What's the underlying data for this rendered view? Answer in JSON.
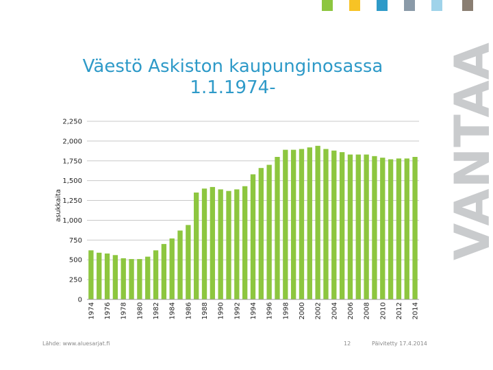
{
  "title": {
    "line1": "Väestö Askiston kaupunginosassa",
    "line2": "1.1.1974-"
  },
  "logo_text": "VANTAA",
  "swatches": [
    "#8dc63f",
    "#f7c325",
    "#2E9AC8",
    "#8a9aa8",
    "#9fd3ea",
    "#8a7e72"
  ],
  "footer": {
    "source": "Lähde: www.aluesarjat.fi",
    "page": "12",
    "updated": "Päivitetty 17.4.2014"
  },
  "chart_data": {
    "type": "bar",
    "ylabel": "asukkaita",
    "ylim": [
      0,
      2250
    ],
    "yticks": [
      "0",
      "250",
      "500",
      "750",
      "1,000",
      "1,250",
      "1,500",
      "1,750",
      "2,000",
      "2,250"
    ],
    "yticks_values": [
      0,
      250,
      500,
      750,
      1000,
      1250,
      1500,
      1750,
      2000,
      2250
    ],
    "bar_color": "#8DC63F",
    "grid": true,
    "categories": [
      "1974",
      "1975",
      "1976",
      "1977",
      "1978",
      "1979",
      "1980",
      "1981",
      "1982",
      "1983",
      "1984",
      "1985",
      "1986",
      "1987",
      "1988",
      "1989",
      "1990",
      "1991",
      "1992",
      "1993",
      "1994",
      "1995",
      "1996",
      "1997",
      "1998",
      "1999",
      "2000",
      "2001",
      "2002",
      "2003",
      "2004",
      "2005",
      "2006",
      "2007",
      "2008",
      "2009",
      "2010",
      "2011",
      "2012",
      "2013",
      "2014"
    ],
    "x_tick_labels": [
      "1974",
      "1976",
      "1978",
      "1980",
      "1982",
      "1984",
      "1986",
      "1988",
      "1990",
      "1992",
      "1994",
      "1996",
      "1998",
      "2000",
      "2002",
      "2004",
      "2006",
      "2008",
      "2010",
      "2012",
      "2014"
    ],
    "values": [
      620,
      590,
      580,
      560,
      520,
      510,
      510,
      540,
      620,
      700,
      770,
      870,
      940,
      1350,
      1400,
      1420,
      1390,
      1370,
      1390,
      1430,
      1580,
      1660,
      1700,
      1800,
      1890,
      1890,
      1900,
      1920,
      1940,
      1900,
      1880,
      1860,
      1830,
      1830,
      1830,
      1810,
      1790,
      1770,
      1780,
      1780,
      1800
    ]
  }
}
